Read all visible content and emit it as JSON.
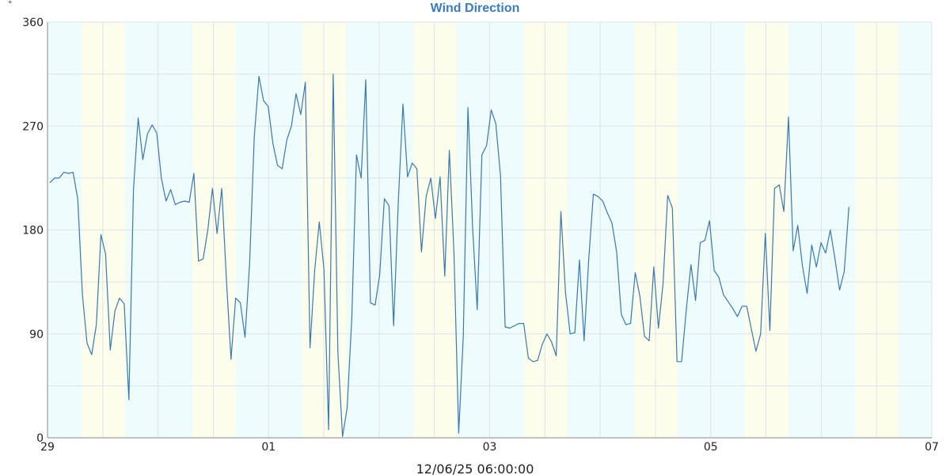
{
  "chart_data": {
    "type": "line",
    "title": "Wind Direction",
    "ylabel": "°",
    "xlabel": "12/06/25 06:00:00",
    "ylim": [
      0,
      360
    ],
    "yticks": [
      0,
      90,
      180,
      270,
      360
    ],
    "xlim_days": [
      "29",
      "07"
    ],
    "xticks": [
      "29",
      "01",
      "03",
      "05",
      "07"
    ],
    "grid": true,
    "band_colors": {
      "night": "#eefcfc",
      "day": "#fdfdec"
    },
    "series": [
      {
        "color": "#3a78b0",
        "y": [
          221,
          225,
          225,
          230,
          229,
          230,
          207,
          124,
          82,
          72,
          98,
          176,
          159,
          76,
          110,
          121,
          116,
          33,
          215,
          277,
          241,
          263,
          271,
          264,
          225,
          205,
          215,
          202,
          204,
          205,
          204,
          229,
          153,
          155,
          180,
          216,
          177,
          216,
          137,
          68,
          121,
          117,
          87,
          151,
          261,
          313,
          292,
          287,
          255,
          236,
          233,
          258,
          270,
          298,
          280,
          308,
          78,
          145,
          187,
          146,
          7,
          315,
          74,
          1,
          26,
          104,
          245,
          225,
          310,
          117,
          115,
          141,
          207,
          201,
          97,
          204,
          289,
          226,
          238,
          233,
          161,
          209,
          225,
          190,
          226,
          140,
          249,
          159,
          4,
          88,
          286,
          182,
          111,
          245,
          253,
          284,
          272,
          227,
          96,
          95,
          97,
          99,
          99,
          69,
          66,
          67,
          81,
          90,
          83,
          71,
          196,
          126,
          90,
          91,
          154,
          84,
          155,
          211,
          209,
          205,
          195,
          186,
          161,
          107,
          98,
          99,
          143,
          123,
          88,
          84,
          148,
          95,
          134,
          210,
          199,
          66,
          66,
          111,
          150,
          119,
          169,
          171,
          188,
          145,
          139,
          124,
          118,
          112,
          105,
          114,
          114,
          94,
          75,
          90,
          177,
          93,
          216,
          219,
          196,
          278,
          162,
          184,
          149,
          125,
          167,
          148,
          169,
          160,
          180,
          155,
          128,
          144,
          200
        ]
      }
    ]
  }
}
